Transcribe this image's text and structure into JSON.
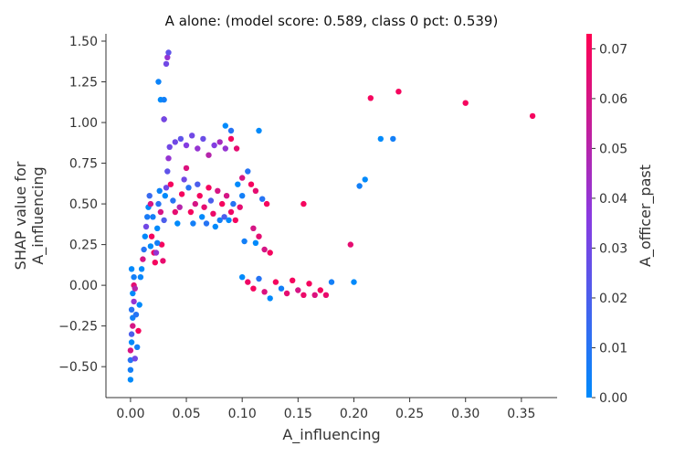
{
  "chart_data": {
    "type": "scatter",
    "title": "A alone: (model score: 0.589, class 0 pct: 0.539)",
    "xlabel": "A_influencing",
    "ylabel_lines": [
      "SHAP value for",
      "A_influencing"
    ],
    "colorbar_label": "A_officer_past",
    "xlim": [
      -0.022,
      0.382
    ],
    "ylim": [
      -0.69,
      1.545
    ],
    "xticks": [
      0.0,
      0.05,
      0.1,
      0.15,
      0.2,
      0.25,
      0.3,
      0.35
    ],
    "xtick_labels": [
      "0.00",
      "0.05",
      "0.10",
      "0.15",
      "0.20",
      "0.25",
      "0.30",
      "0.35"
    ],
    "yticks": [
      -0.5,
      -0.25,
      0.0,
      0.25,
      0.5,
      0.75,
      1.0,
      1.25,
      1.5
    ],
    "ytick_labels": [
      "−0.50",
      "−0.25",
      "0.00",
      "0.25",
      "0.50",
      "0.75",
      "1.00",
      "1.25",
      "1.50"
    ],
    "colorbar_range": [
      0.0,
      0.073
    ],
    "colorbar_ticks": [
      0.0,
      0.01,
      0.02,
      0.03,
      0.04,
      0.05,
      0.06,
      0.07
    ],
    "colorbar_tick_labels": [
      "0.00",
      "0.01",
      "0.02",
      "0.03",
      "0.04",
      "0.05",
      "0.06",
      "0.07"
    ],
    "colormap": [
      "#008afb",
      "#8a3ae0",
      "#ff0052"
    ],
    "grid": false,
    "points": [
      [
        0.0,
        -0.58,
        0.0
      ],
      [
        0.0,
        -0.52,
        0.005
      ],
      [
        0.0,
        -0.46,
        0.01
      ],
      [
        0.0,
        -0.4,
        0.06
      ],
      [
        0.001,
        -0.35,
        0.0
      ],
      [
        0.001,
        -0.3,
        0.02
      ],
      [
        0.002,
        -0.25,
        0.06
      ],
      [
        0.002,
        -0.2,
        0.005
      ],
      [
        0.001,
        -0.15,
        0.01
      ],
      [
        0.003,
        -0.1,
        0.04
      ],
      [
        0.002,
        -0.05,
        0.0
      ],
      [
        0.003,
        0.0,
        0.065
      ],
      [
        0.003,
        0.05,
        0.005
      ],
      [
        0.001,
        0.1,
        0.0
      ],
      [
        0.004,
        -0.45,
        0.03
      ],
      [
        0.006,
        -0.38,
        0.005
      ],
      [
        0.007,
        -0.28,
        0.07
      ],
      [
        0.005,
        -0.18,
        0.01
      ],
      [
        0.008,
        -0.12,
        0.0
      ],
      [
        0.004,
        -0.02,
        0.05
      ],
      [
        0.009,
        0.05,
        0.002
      ],
      [
        0.01,
        0.1,
        0.0
      ],
      [
        0.011,
        0.16,
        0.06
      ],
      [
        0.012,
        0.22,
        0.01
      ],
      [
        0.013,
        0.3,
        0.0
      ],
      [
        0.014,
        0.36,
        0.03
      ],
      [
        0.015,
        0.42,
        0.007
      ],
      [
        0.016,
        0.48,
        0.0
      ],
      [
        0.017,
        0.55,
        0.015
      ],
      [
        0.018,
        0.5,
        0.06
      ],
      [
        0.02,
        0.42,
        0.005
      ],
      [
        0.019,
        0.3,
        0.07
      ],
      [
        0.021,
        0.2,
        0.068
      ],
      [
        0.022,
        0.14,
        0.07
      ],
      [
        0.023,
        0.2,
        0.04
      ],
      [
        0.024,
        0.35,
        0.0
      ],
      [
        0.025,
        0.5,
        0.01
      ],
      [
        0.026,
        0.58,
        0.003
      ],
      [
        0.027,
        0.45,
        0.06
      ],
      [
        0.028,
        0.25,
        0.07
      ],
      [
        0.029,
        0.15,
        0.066
      ],
      [
        0.03,
        0.4,
        0.02
      ],
      [
        0.031,
        0.55,
        0.0
      ],
      [
        0.024,
        0.26,
        0.005
      ],
      [
        0.018,
        0.24,
        0.0
      ],
      [
        0.032,
        0.6,
        0.03
      ],
      [
        0.033,
        0.7,
        0.025
      ],
      [
        0.034,
        0.78,
        0.04
      ],
      [
        0.035,
        0.85,
        0.03
      ],
      [
        0.036,
        0.62,
        0.07
      ],
      [
        0.038,
        0.52,
        0.01
      ],
      [
        0.04,
        0.45,
        0.065
      ],
      [
        0.042,
        0.38,
        0.0
      ],
      [
        0.044,
        0.48,
        0.05
      ],
      [
        0.046,
        0.56,
        0.07
      ],
      [
        0.048,
        0.65,
        0.03
      ],
      [
        0.05,
        0.72,
        0.062
      ],
      [
        0.052,
        0.6,
        0.01
      ],
      [
        0.054,
        0.45,
        0.07
      ],
      [
        0.056,
        0.38,
        0.005
      ],
      [
        0.058,
        0.5,
        0.06
      ],
      [
        0.06,
        0.62,
        0.02
      ],
      [
        0.062,
        0.55,
        0.07
      ],
      [
        0.064,
        0.42,
        0.0
      ],
      [
        0.066,
        0.48,
        0.065
      ],
      [
        0.068,
        0.38,
        0.01
      ],
      [
        0.07,
        0.6,
        0.07
      ],
      [
        0.072,
        0.52,
        0.02
      ],
      [
        0.074,
        0.44,
        0.067
      ],
      [
        0.076,
        0.36,
        0.0
      ],
      [
        0.078,
        0.58,
        0.06
      ],
      [
        0.08,
        0.4,
        0.005
      ],
      [
        0.082,
        0.5,
        0.07
      ],
      [
        0.084,
        0.42,
        0.02
      ],
      [
        0.086,
        0.55,
        0.06
      ],
      [
        0.088,
        0.4,
        0.0
      ],
      [
        0.09,
        0.45,
        0.068
      ],
      [
        0.092,
        0.5,
        0.01
      ],
      [
        0.094,
        0.4,
        0.07
      ],
      [
        0.096,
        0.62,
        0.0
      ],
      [
        0.098,
        0.48,
        0.065
      ],
      [
        0.1,
        0.55,
        0.005
      ],
      [
        0.04,
        0.88,
        0.03
      ],
      [
        0.045,
        0.9,
        0.025
      ],
      [
        0.05,
        0.86,
        0.035
      ],
      [
        0.055,
        0.92,
        0.03
      ],
      [
        0.06,
        0.84,
        0.04
      ],
      [
        0.065,
        0.9,
        0.028
      ],
      [
        0.07,
        0.8,
        0.05
      ],
      [
        0.075,
        0.86,
        0.035
      ],
      [
        0.08,
        0.88,
        0.045
      ],
      [
        0.085,
        0.84,
        0.04
      ],
      [
        0.09,
        0.9,
        0.07
      ],
      [
        0.095,
        0.84,
        0.065
      ],
      [
        0.085,
        0.98,
        0.0
      ],
      [
        0.09,
        0.95,
        0.01
      ],
      [
        0.115,
        0.95,
        0.0
      ],
      [
        0.1,
        0.66,
        0.06
      ],
      [
        0.105,
        0.7,
        0.01
      ],
      [
        0.108,
        0.62,
        0.07
      ],
      [
        0.112,
        0.58,
        0.065
      ],
      [
        0.118,
        0.53,
        0.01
      ],
      [
        0.122,
        0.5,
        0.07
      ],
      [
        0.11,
        0.35,
        0.06
      ],
      [
        0.115,
        0.3,
        0.065
      ],
      [
        0.102,
        0.27,
        0.005
      ],
      [
        0.112,
        0.26,
        0.0
      ],
      [
        0.12,
        0.22,
        0.06
      ],
      [
        0.125,
        0.2,
        0.07
      ],
      [
        0.1,
        0.05,
        0.0
      ],
      [
        0.105,
        0.02,
        0.068
      ],
      [
        0.11,
        -0.02,
        0.07
      ],
      [
        0.115,
        0.04,
        0.01
      ],
      [
        0.12,
        -0.04,
        0.062
      ],
      [
        0.125,
        -0.08,
        0.0
      ],
      [
        0.13,
        0.02,
        0.07
      ],
      [
        0.135,
        -0.02,
        0.005
      ],
      [
        0.14,
        -0.05,
        0.065
      ],
      [
        0.145,
        0.03,
        0.07
      ],
      [
        0.15,
        -0.03,
        0.06
      ],
      [
        0.155,
        -0.06,
        0.067
      ],
      [
        0.16,
        0.01,
        0.07
      ],
      [
        0.165,
        -0.06,
        0.062
      ],
      [
        0.17,
        -0.03,
        0.07
      ],
      [
        0.175,
        -0.06,
        0.066
      ],
      [
        0.18,
        0.02,
        0.005
      ],
      [
        0.155,
        0.5,
        0.07
      ],
      [
        0.025,
        1.25,
        0.003
      ],
      [
        0.027,
        1.14,
        0.0
      ],
      [
        0.03,
        1.14,
        0.005
      ],
      [
        0.03,
        1.02,
        0.06
      ],
      [
        0.032,
        1.36,
        0.03
      ],
      [
        0.033,
        1.4,
        0.04
      ],
      [
        0.034,
        1.43,
        0.025
      ],
      [
        0.03,
        1.02,
        0.03
      ],
      [
        0.2,
        0.02,
        0.0
      ],
      [
        0.197,
        0.25,
        0.065
      ],
      [
        0.205,
        0.61,
        0.005
      ],
      [
        0.21,
        0.65,
        0.0
      ],
      [
        0.215,
        1.15,
        0.07
      ],
      [
        0.224,
        0.9,
        0.0
      ],
      [
        0.235,
        0.9,
        0.005
      ],
      [
        0.24,
        1.19,
        0.07
      ],
      [
        0.3,
        1.12,
        0.07
      ],
      [
        0.36,
        1.04,
        0.07
      ]
    ]
  }
}
